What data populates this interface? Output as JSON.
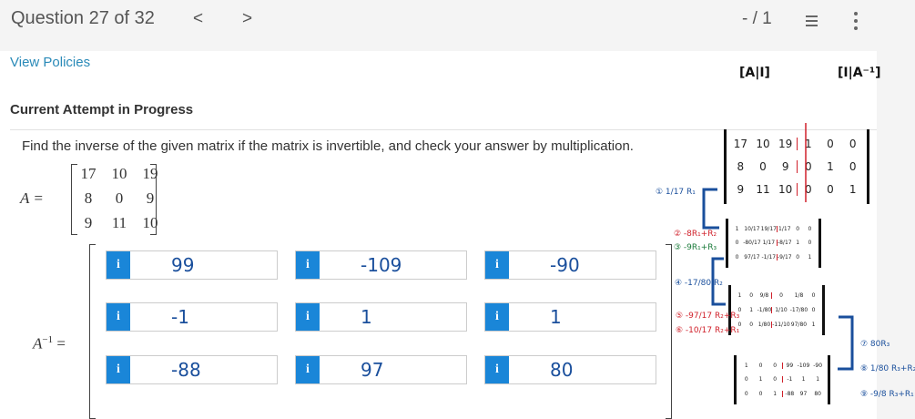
{
  "header": {
    "title": "Question 27 of 32",
    "prev": "<",
    "next": ">",
    "score": "- / 1",
    "list_icon": "list-icon",
    "more_icon": "kebab-icon"
  },
  "links": {
    "view_policies": "View Policies"
  },
  "attempt": "Current Attempt in Progress",
  "question": "Find the inverse of the given matrix if the matrix is invertible, and check your answer by multiplication.",
  "matrix_a": {
    "label": "A =",
    "rows": [
      [
        "17",
        "10",
        "19"
      ],
      [
        "8",
        "0",
        "9"
      ],
      [
        "9",
        "11",
        "10"
      ]
    ]
  },
  "inverse": {
    "label_base": "A",
    "label_sup": "−1",
    "eq": "=",
    "info": "i",
    "values": [
      [
        "99",
        "-109",
        "-90"
      ],
      [
        "-1",
        "1",
        "1"
      ],
      [
        "-88",
        "97",
        "80"
      ]
    ],
    "accent": "#1a86d8",
    "ink": "#1a4f9c"
  },
  "notes": {
    "label_ai": "[A|I]",
    "label_ia": "[I|A⁻¹]",
    "m1": [
      [
        "17",
        "10",
        "19",
        "1",
        "0",
        "0"
      ],
      [
        "8",
        "0",
        "9",
        "0",
        "1",
        "0"
      ],
      [
        "9",
        "11",
        "10",
        "0",
        "0",
        "1"
      ]
    ],
    "m2": [
      [
        "1",
        "10/17",
        "19/17",
        "1/17",
        "0",
        "0"
      ],
      [
        "0",
        "-80/17",
        "1/17",
        "-8/17",
        "1",
        "0"
      ],
      [
        "0",
        "97/17",
        "-1/17",
        "-9/17",
        "0",
        "1"
      ]
    ],
    "m3": [
      [
        "1",
        "0",
        "9/8",
        "0",
        "1/8",
        "0"
      ],
      [
        "0",
        "1",
        "-1/80",
        "1/10",
        "-17/80",
        "0"
      ],
      [
        "0",
        "0",
        "1/80",
        "-11/10",
        "97/80",
        "1"
      ]
    ],
    "m4": [
      [
        "1",
        "0",
        "0",
        "99",
        "-109",
        "-90"
      ],
      [
        "0",
        "1",
        "0",
        "-1",
        "1",
        "1"
      ],
      [
        "0",
        "0",
        "1",
        "-88",
        "97",
        "80"
      ]
    ],
    "steps": [
      "① 1/17 R₁",
      "② -8R₁+R₂",
      "③ -9R₁+R₃",
      "④ -17/80 R₂",
      "⑤ -97/17 R₂+R₃",
      "⑥ -10/17 R₂+R₁",
      "⑦ 80R₃",
      "⑧ 1/80 R₃+R₂",
      "⑨ -9/8 R₃+R₁"
    ],
    "colors": {
      "blue": "#1a4f9c",
      "red": "#d0202a",
      "green": "#1a7a3a"
    }
  }
}
